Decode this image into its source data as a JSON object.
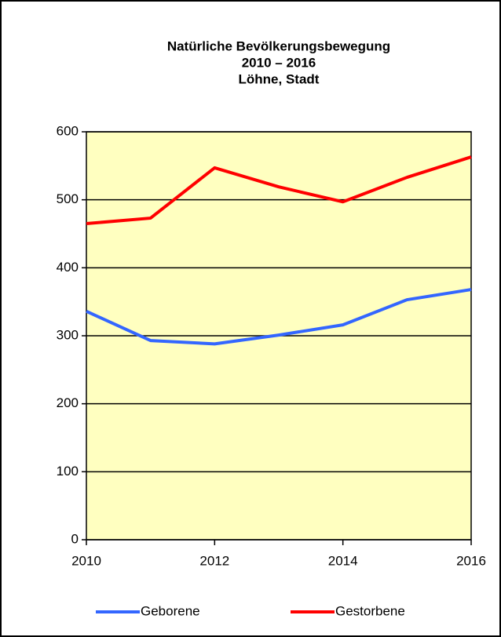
{
  "chart_data": {
    "type": "line",
    "title": [
      "Natürliche Bevölkerungsbewegung",
      "2010 – 2016",
      "Löhne, Stadt"
    ],
    "x": [
      2010,
      2011,
      2012,
      2013,
      2014,
      2015,
      2016
    ],
    "series": [
      {
        "name": "Geborene",
        "color": "#3366ff",
        "values": [
          336,
          293,
          288,
          301,
          316,
          353,
          368
        ]
      },
      {
        "name": "Gestorbene",
        "color": "#ff0000",
        "values": [
          465,
          473,
          547,
          519,
          497,
          533,
          563
        ]
      }
    ],
    "xlim": [
      2010,
      2016
    ],
    "xticks": [
      2010,
      2012,
      2014,
      2016
    ],
    "ylim": [
      0,
      600
    ],
    "yticks": [
      0,
      100,
      200,
      300,
      400,
      500,
      600
    ],
    "grid": true,
    "legend": "bottom"
  }
}
